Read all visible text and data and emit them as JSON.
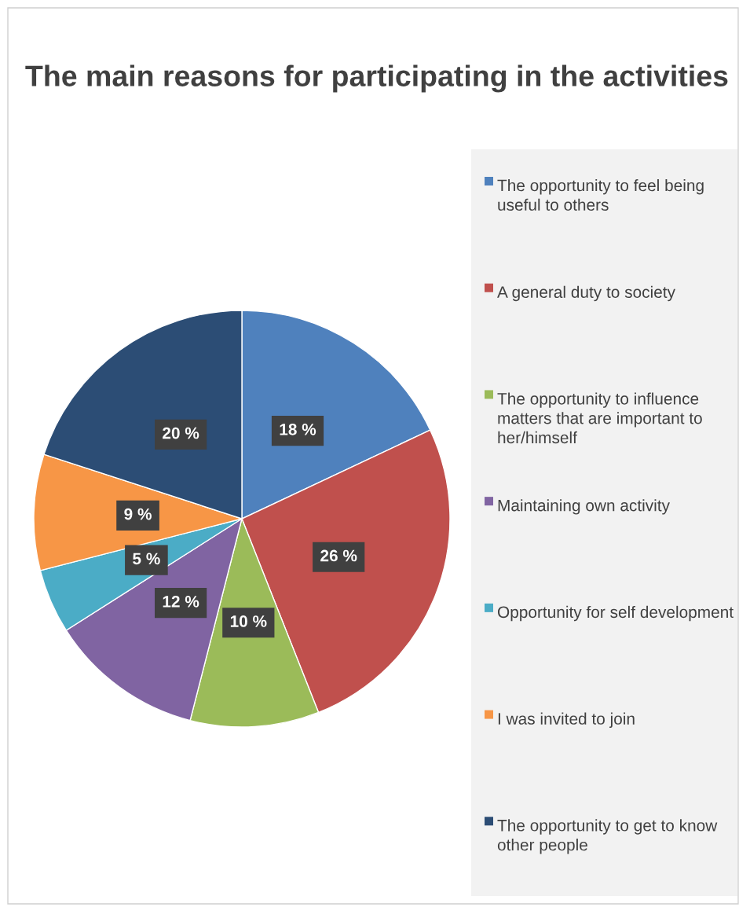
{
  "chart_data": {
    "type": "pie",
    "title": "The main reasons for participating in the activities",
    "categories": [
      "The opportunity to feel being useful to others",
      "A general duty to society",
      "The opportunity to influence matters that are important to her/himself",
      "Maintaining own activity",
      "Opportunity for self development",
      "I was invited to join",
      "The opportunity to get to know other people"
    ],
    "values": [
      18,
      26,
      10,
      12,
      5,
      9,
      20
    ],
    "colors": [
      "#4f81bd",
      "#c0504d",
      "#9bbb59",
      "#8064a2",
      "#4bacc6",
      "#f79646",
      "#2c4d75"
    ],
    "value_labels": [
      "18 %",
      "26 %",
      "10 %",
      "12 %",
      "5 %",
      "9 %",
      "20 %"
    ],
    "legend": "right"
  }
}
